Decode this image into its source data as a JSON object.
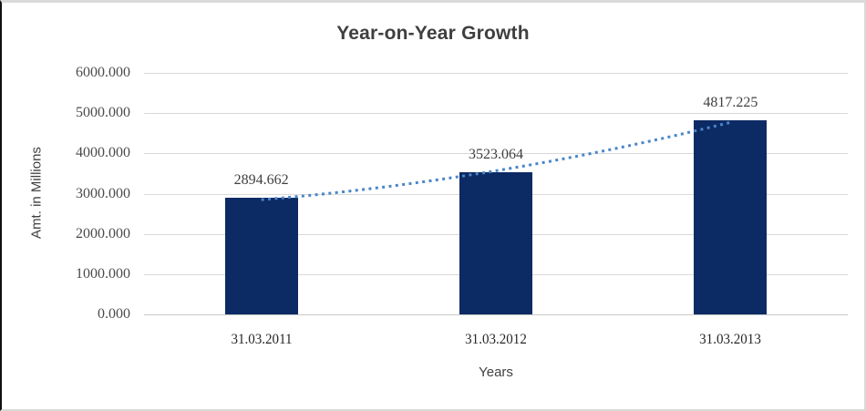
{
  "chart_data": {
    "type": "bar",
    "title": "Year-on-Year Growth",
    "xlabel": "Years",
    "ylabel": "Amt. in Millions",
    "categories": [
      "31.03.2011",
      "31.03.2012",
      "31.03.2013"
    ],
    "values": [
      2894.662,
      3523.064,
      4817.225
    ],
    "data_labels": [
      "2894.662",
      "3523.064",
      "4817.225"
    ],
    "ylim": [
      0,
      6000
    ],
    "ytick_step": 1000,
    "ytick_labels": [
      "0.000",
      "1000.000",
      "2000.000",
      "3000.000",
      "4000.000",
      "5000.000",
      "6000.000"
    ],
    "grid": true,
    "legend": false,
    "trendline": {
      "style": "dotted",
      "color": "#4a86c8"
    },
    "colors": {
      "bar": "#0c2a64",
      "trendline": "#4a86c8",
      "gridline": "#d9d9d9",
      "axis_line": "#c9c9c9",
      "title_text": "#3f3f3f",
      "tick_text": "#4a4a4a",
      "data_label_text": "#3f3f3f",
      "category_text": "#262626"
    }
  }
}
